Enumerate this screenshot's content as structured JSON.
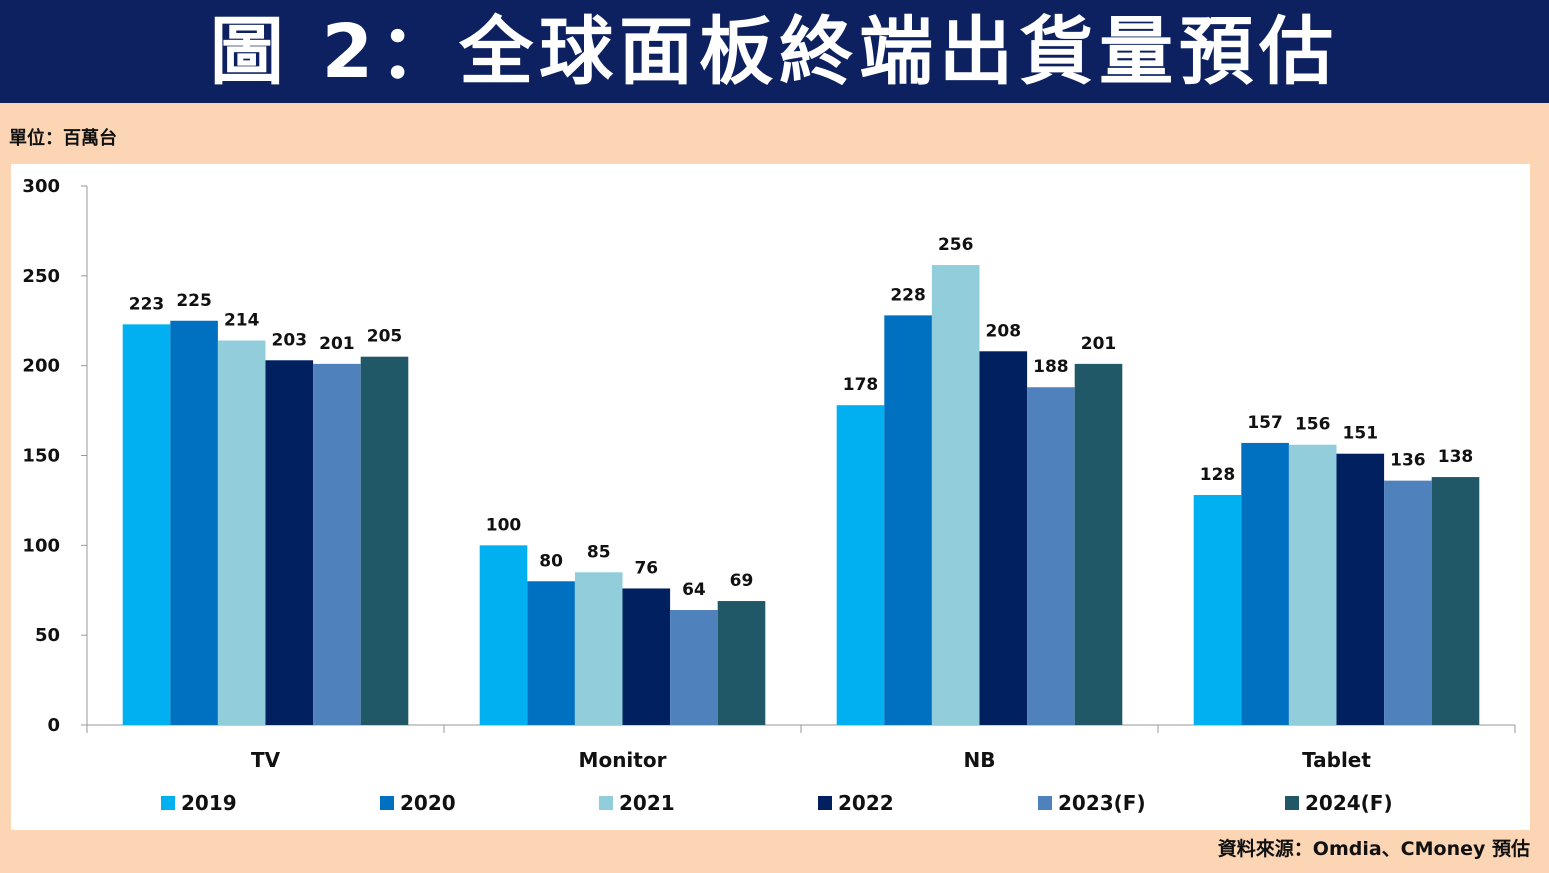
{
  "header": {
    "title": "圖 2：全球面板終端出貨量預估"
  },
  "unit_label": "單位：百萬台",
  "source_label": "資料來源：Omdia、CMoney 預估",
  "chart_data": {
    "type": "bar",
    "title": "圖 2：全球面板終端出貨量預估",
    "xlabel": "",
    "ylabel": "",
    "ylim": [
      0,
      300
    ],
    "yticks": [
      0,
      50,
      100,
      150,
      200,
      250,
      300
    ],
    "grid": false,
    "legend_position": "bottom",
    "categories": [
      "TV",
      "Monitor",
      "NB",
      "Tablet"
    ],
    "series": [
      {
        "name": "2019",
        "color": "#00b0f0",
        "values": [
          223,
          100,
          178,
          128
        ]
      },
      {
        "name": "2020",
        "color": "#0070c0",
        "values": [
          225,
          80,
          228,
          157
        ]
      },
      {
        "name": "2021",
        "color": "#92cddc",
        "values": [
          214,
          85,
          256,
          156
        ]
      },
      {
        "name": "2022",
        "color": "#002060",
        "values": [
          203,
          76,
          208,
          151
        ]
      },
      {
        "name": "2023(F)",
        "color": "#4f81bd",
        "values": [
          201,
          64,
          188,
          136
        ]
      },
      {
        "name": "2024(F)",
        "color": "#215868",
        "values": [
          205,
          69,
          201,
          138
        ]
      }
    ]
  },
  "colors": {
    "header_bg": "#0d2160",
    "page_bg": "#fcd5b5",
    "plot_bg": "#ffffff"
  }
}
